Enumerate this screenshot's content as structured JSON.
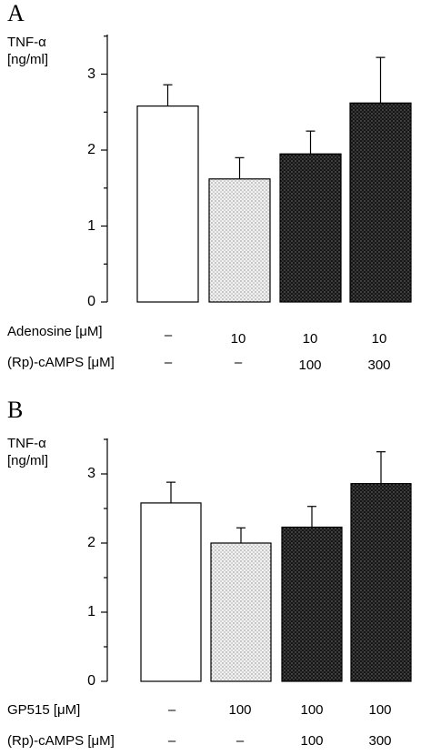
{
  "panels": [
    {
      "label": "A",
      "ylabel_line1": "TNF-α",
      "ylabel_line2": "[ng/ml]",
      "y_ticks": [
        "0",
        "1",
        "2",
        "3"
      ],
      "conditions": [
        {
          "name": "Adenosine [μM]",
          "values": [
            "–",
            "10",
            "10",
            "10"
          ]
        },
        {
          "name": "(Rp)-cAMPS [μM]",
          "values": [
            "–",
            "–",
            "100",
            "300"
          ]
        }
      ]
    },
    {
      "label": "B",
      "ylabel_line1": "TNF-α",
      "ylabel_line2": "[ng/ml]",
      "y_ticks": [
        "0",
        "1",
        "2",
        "3"
      ],
      "conditions": [
        {
          "name": "GP515 [μM]",
          "values": [
            "–",
            "100",
            "100",
            "100"
          ]
        },
        {
          "name": "(Rp)-cAMPS [μM]",
          "values": [
            "–",
            "–",
            "100",
            "300"
          ]
        }
      ]
    }
  ],
  "chart_data": [
    {
      "type": "bar",
      "title": "",
      "ylabel": "TNF-α [ng/ml]",
      "ylim": [
        0,
        3.5
      ],
      "values": [
        2.58,
        1.62,
        1.95,
        2.62
      ],
      "errors": [
        0.28,
        0.28,
        0.3,
        0.6
      ],
      "fills": [
        "white",
        "light-stipple",
        "dark-stipple",
        "dark-stipple"
      ]
    },
    {
      "type": "bar",
      "title": "",
      "ylabel": "TNF-α [ng/ml]",
      "ylim": [
        0,
        3.5
      ],
      "values": [
        2.58,
        2.0,
        2.23,
        2.86
      ],
      "errors": [
        0.3,
        0.22,
        0.3,
        0.46
      ],
      "fills": [
        "white",
        "light-stipple",
        "dark-stipple",
        "dark-stipple"
      ]
    }
  ]
}
